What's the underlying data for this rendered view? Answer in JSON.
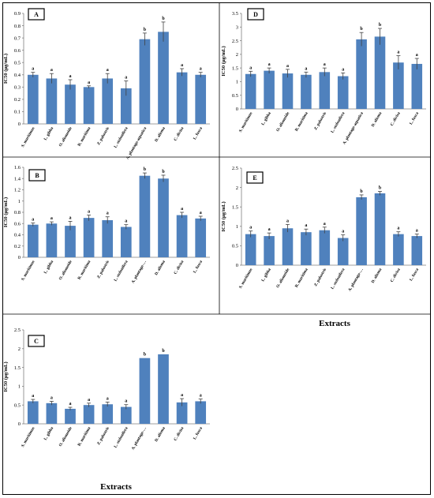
{
  "figure": {
    "xaxis_title": "Extracts"
  },
  "chart_data": [
    {
      "panel": "A",
      "type": "bar",
      "ylabel": "IC50 (µg/mL)",
      "ylim": [
        0,
        0.9
      ],
      "yticks": [
        "0",
        "0.1",
        "0.2",
        "0.3",
        "0.4",
        "0.5",
        "0.6",
        "0.7",
        "0.8",
        "0.9"
      ],
      "categories": [
        "S. maritimus",
        "L. gibba",
        "O. alismoide",
        "R. maritima",
        "Z. palustris",
        "L. stolonifera",
        "A. plantago-aquatica",
        "D. alisma",
        "C. divisa",
        "L. fusca"
      ],
      "values": [
        0.4,
        0.37,
        0.32,
        0.3,
        0.37,
        0.29,
        0.69,
        0.75,
        0.42,
        0.4
      ],
      "errors": [
        0.02,
        0.04,
        0.04,
        0.01,
        0.04,
        0.06,
        0.05,
        0.08,
        0.03,
        0.02
      ],
      "letters": [
        "a",
        "a",
        "a",
        "a",
        "a",
        "a",
        "b",
        "b",
        "a",
        "a"
      ],
      "xtitle": ""
    },
    {
      "panel": "B",
      "type": "bar",
      "ylabel": "IC50 (µg/mL)",
      "ylim": [
        0,
        1.6
      ],
      "yticks": [
        "0",
        "0.2",
        "0.4",
        "0.6",
        "0.8",
        "1",
        "1.2",
        "1.4",
        "1.6"
      ],
      "categories": [
        "S. maritimus",
        "L. gibba",
        "O. alismoide",
        "R. maritima",
        "Z. palustris",
        "L. stolonifera",
        "A. plantago-…",
        "D. alisma",
        "C. divisa",
        "L. fusca"
      ],
      "values": [
        0.58,
        0.6,
        0.56,
        0.7,
        0.66,
        0.54,
        1.45,
        1.4,
        0.75,
        0.69
      ],
      "errors": [
        0.03,
        0.03,
        0.08,
        0.05,
        0.06,
        0.04,
        0.05,
        0.06,
        0.05,
        0.04
      ],
      "letters": [
        "a",
        "a",
        "a",
        "a",
        "a",
        "a",
        "b",
        "b",
        "a",
        "a"
      ],
      "xtitle": ""
    },
    {
      "panel": "C",
      "type": "bar",
      "ylabel": "IC50 (µg/mL)",
      "ylim": [
        0,
        2.5
      ],
      "yticks": [
        "0",
        "0.5",
        "1",
        "1.5",
        "2",
        "2.5"
      ],
      "categories": [
        "S. maritimus",
        "L. gibba",
        "O. alismoide",
        "R. maritima",
        "Z. palustris",
        "L. stolonifera",
        "A. plantago-…",
        "D. alisma",
        "C. divisa",
        "L. fusca"
      ],
      "values": [
        0.6,
        0.55,
        0.4,
        0.5,
        0.52,
        0.45,
        1.75,
        1.85,
        0.57,
        0.6
      ],
      "errors": [
        0.05,
        0.05,
        0.04,
        0.05,
        0.06,
        0.06,
        0.0,
        0.0,
        0.1,
        0.06
      ],
      "letters": [
        "a",
        "a",
        "a",
        "a",
        "a",
        "a",
        "b",
        "b",
        "a",
        "a"
      ],
      "xtitle": "Extracts"
    },
    {
      "panel": "D",
      "type": "bar",
      "ylabel": "IC50 (µg/mL)",
      "ylim": [
        0,
        3.5
      ],
      "yticks": [
        "0",
        "0.5",
        "1",
        "1.5",
        "2",
        "2.5",
        "3",
        "3.5"
      ],
      "categories": [
        "S. maritimus",
        "L. gibba",
        "O. alismoide",
        "R. maritima",
        "Z. palustris",
        "L. stolonifera",
        "A. plantago-aquatica",
        "D. alisma",
        "C. divisa",
        "L. fusca"
      ],
      "values": [
        1.28,
        1.4,
        1.3,
        1.25,
        1.35,
        1.2,
        2.55,
        2.65,
        1.7,
        1.65
      ],
      "errors": [
        0.1,
        0.1,
        0.15,
        0.1,
        0.15,
        0.12,
        0.25,
        0.3,
        0.25,
        0.2
      ],
      "letters": [
        "a",
        "a",
        "a",
        "a",
        "a",
        "a",
        "b",
        "b",
        "a",
        "a"
      ],
      "xtitle": ""
    },
    {
      "panel": "E",
      "type": "bar",
      "ylabel": "IC50 (µg/mL)",
      "ylim": [
        0,
        2.5
      ],
      "yticks": [
        "0",
        "0.5",
        "1",
        "1.5",
        "2",
        "2.5"
      ],
      "categories": [
        "S. maritimus",
        "L. gibba",
        "O. alismoide",
        "R. maritima",
        "Z. palustris",
        "L. stolonifera",
        "A. plantago-…",
        "D. alisma",
        "C. divisa",
        "L. fusca"
      ],
      "values": [
        0.8,
        0.75,
        0.95,
        0.85,
        0.9,
        0.7,
        1.75,
        1.85,
        0.8,
        0.75
      ],
      "errors": [
        0.08,
        0.08,
        0.1,
        0.08,
        0.08,
        0.08,
        0.06,
        0.05,
        0.06,
        0.05
      ],
      "letters": [
        "a",
        "a",
        "a",
        "a",
        "a",
        "a",
        "b",
        "b",
        "a",
        "a"
      ],
      "xtitle": ""
    }
  ]
}
